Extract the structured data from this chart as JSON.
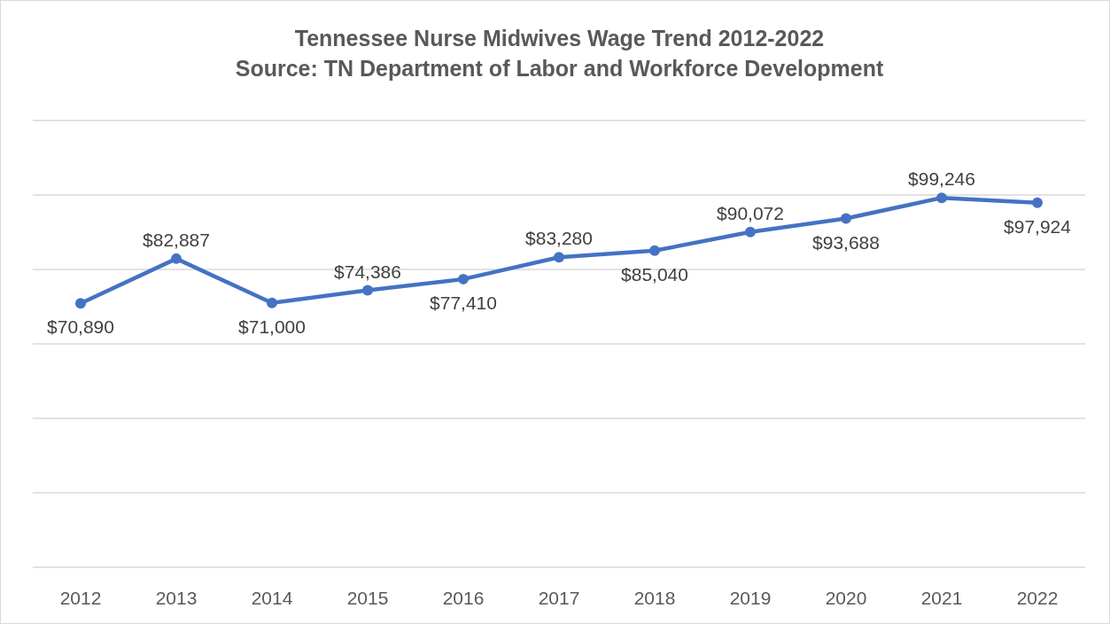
{
  "chart_data": {
    "type": "line",
    "title": "Tennessee Nurse Midwives Wage Trend 2012-2022\nSource: TN Department of Labor and Workforce Development",
    "categories": [
      "2012",
      "2013",
      "2014",
      "2015",
      "2016",
      "2017",
      "2018",
      "2019",
      "2020",
      "2021",
      "2022"
    ],
    "series": [
      {
        "color": "#4472c4",
        "values": [
          70890,
          82887,
          71000,
          74386,
          77410,
          83280,
          85040,
          90072,
          93688,
          99246,
          97924
        ],
        "value_labels": [
          "$70,890",
          "$82,887",
          "$71,000",
          "$74,386",
          "$77,410",
          "$83,280",
          "$85,040",
          "$90,072",
          "$93,688",
          "$99,246",
          "$97,924"
        ]
      }
    ],
    "ylim": [
      0,
      120000
    ],
    "yticks": [
      {
        "value": 0,
        "label": null
      },
      {
        "value": 20000,
        "label": null
      },
      {
        "value": 40000,
        "label": null
      },
      {
        "value": 60000,
        "label": null
      },
      {
        "value": 80000,
        "label": null
      },
      {
        "value": 100000,
        "label": null
      },
      {
        "value": 120000,
        "label": null
      }
    ],
    "tick_labels": "x",
    "grid": "y",
    "marker": "circle",
    "line_style": "solid"
  }
}
